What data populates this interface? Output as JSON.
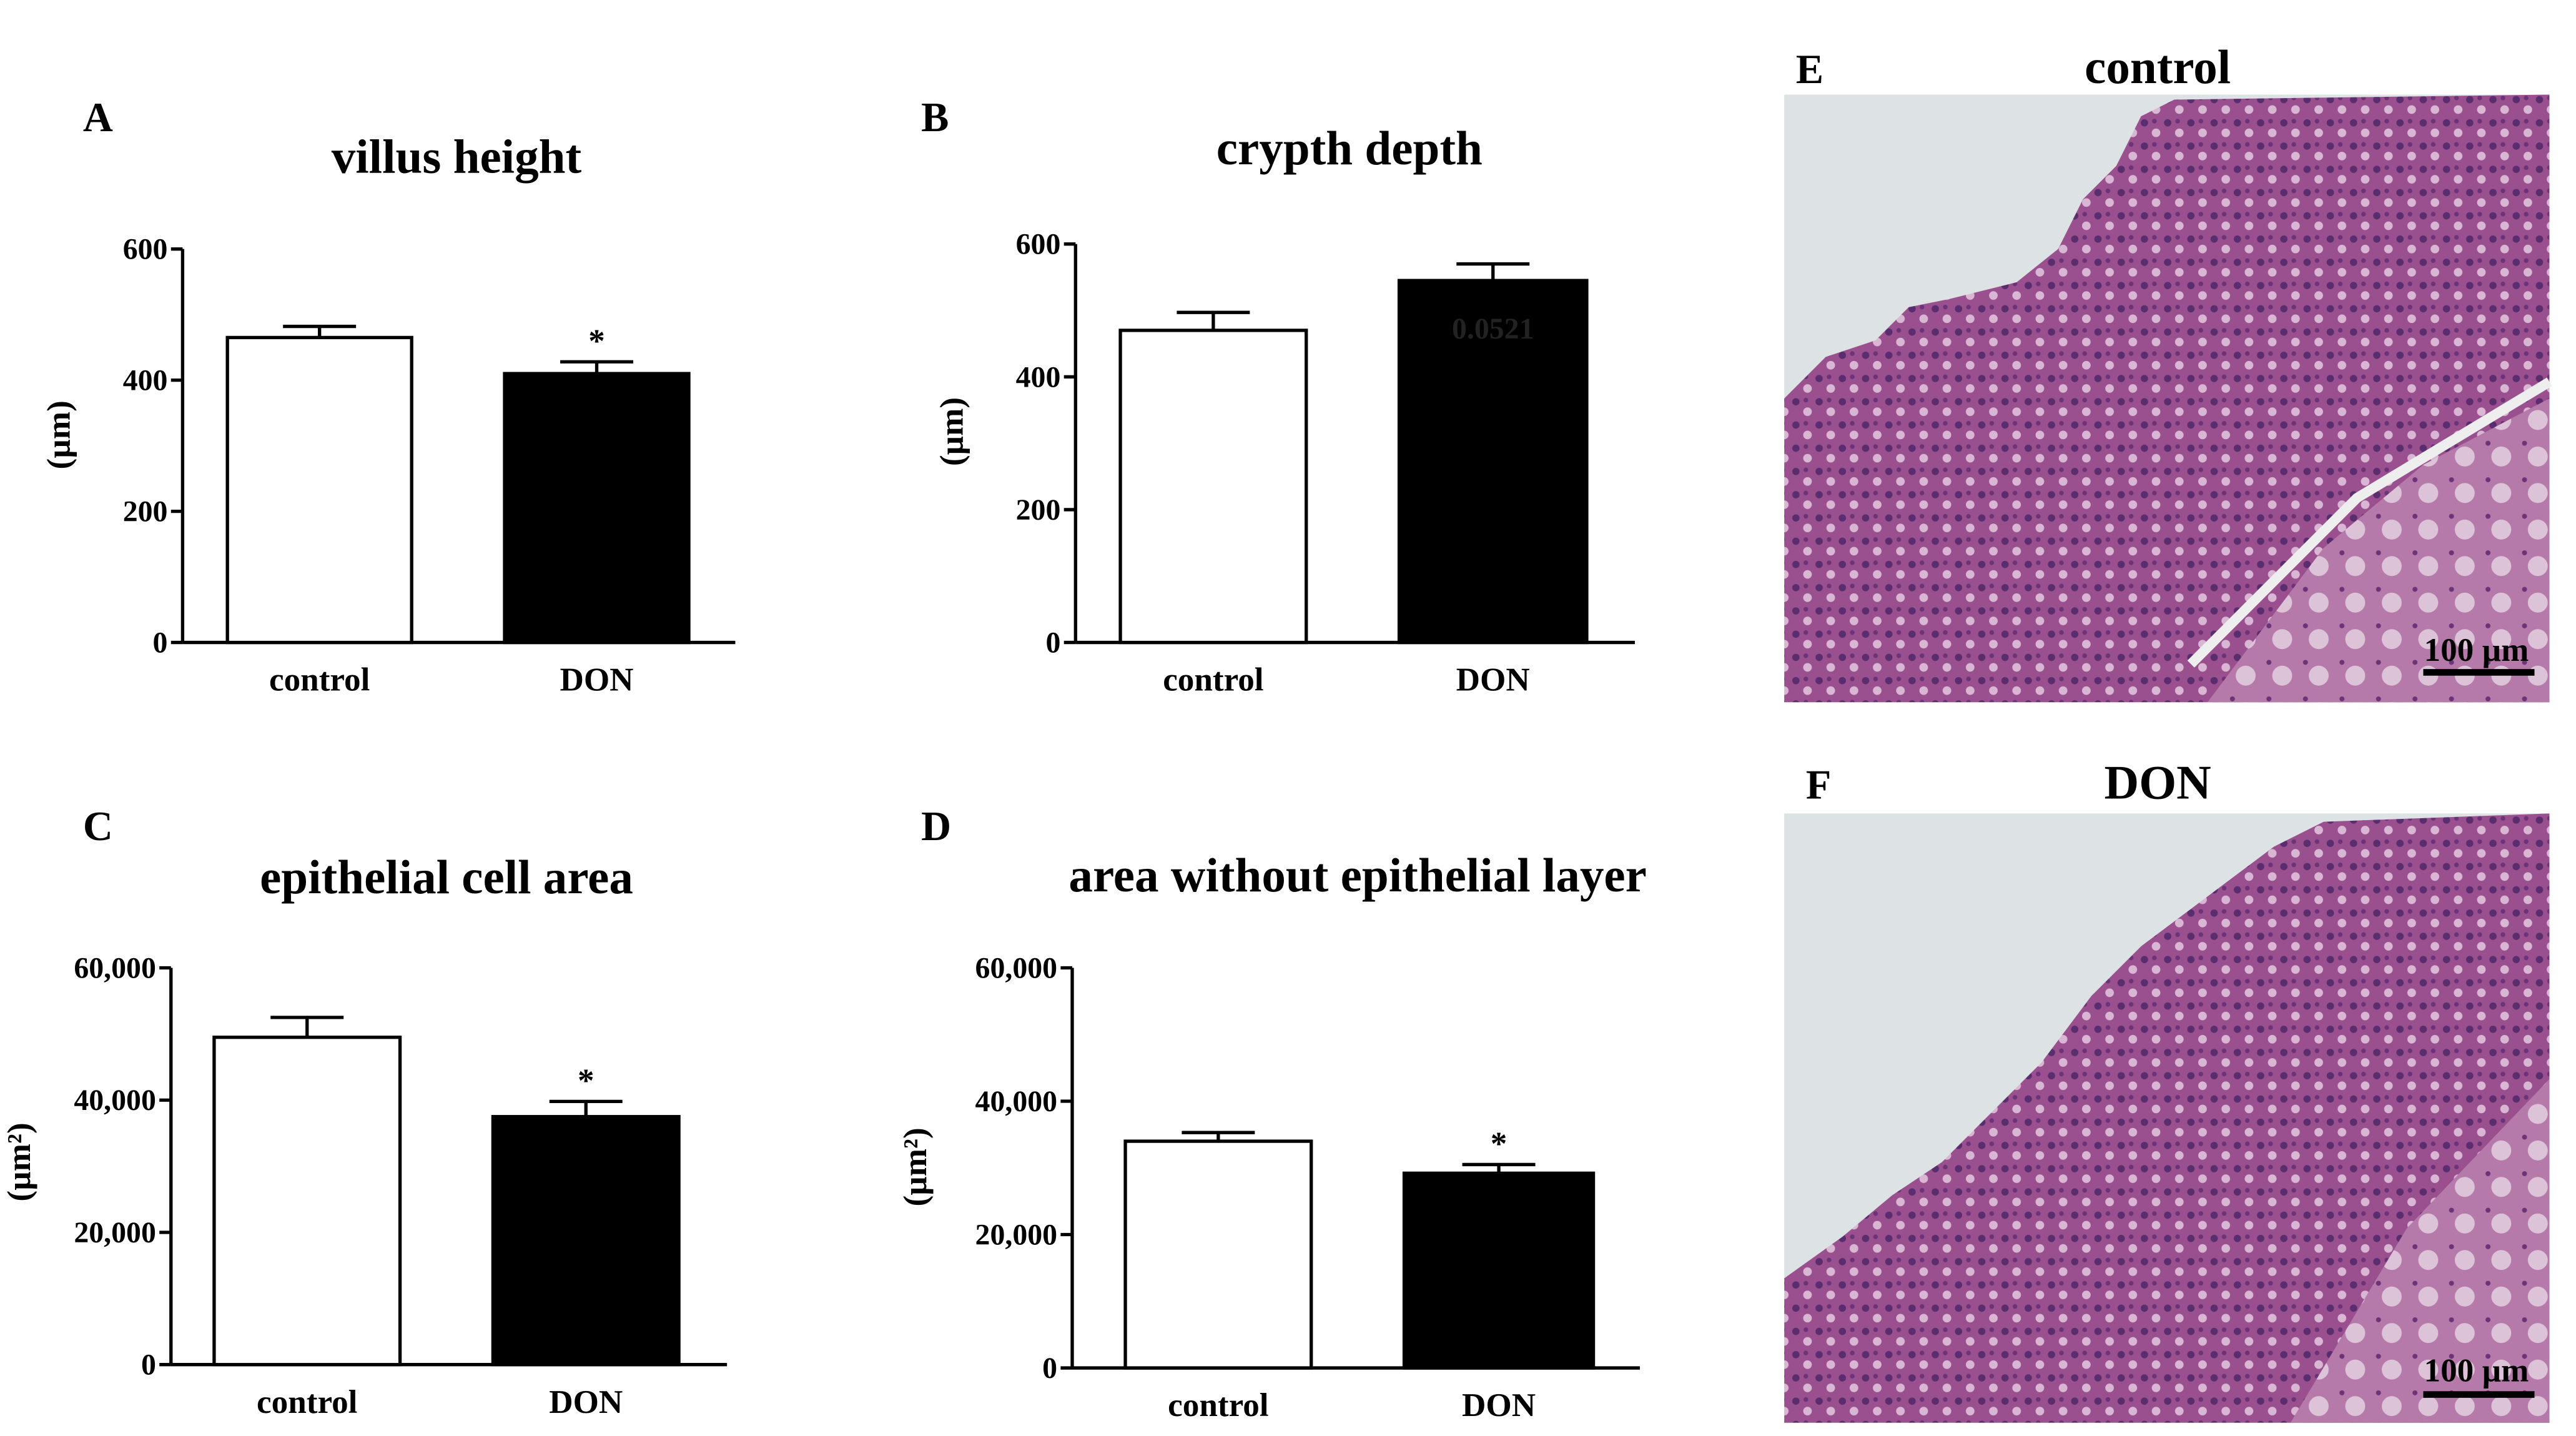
{
  "chart_data": [
    {
      "type": "bar",
      "panel": "A",
      "title": "villus height",
      "ylabel": "(µm)",
      "categories": [
        "control",
        "DON"
      ],
      "values": [
        465,
        410
      ],
      "errors": [
        17,
        18
      ],
      "colors": [
        "#ffffff",
        "#000000"
      ],
      "significance": [
        null,
        "*"
      ],
      "ylim": [
        0,
        600
      ],
      "yticks": [
        0,
        200,
        400,
        600
      ]
    },
    {
      "type": "bar",
      "panel": "B",
      "title": "crypth depth",
      "ylabel": "(µm)",
      "categories": [
        "control",
        "DON"
      ],
      "values": [
        470,
        545
      ],
      "errors": [
        27,
        25
      ],
      "colors": [
        "#ffffff",
        "#000000"
      ],
      "annotation": "0.0521",
      "ylim": [
        0,
        600
      ],
      "yticks": [
        0,
        200,
        400,
        600
      ]
    },
    {
      "type": "bar",
      "panel": "C",
      "title": "epithelial cell area",
      "ylabel": "(µm²)",
      "categories": [
        "control",
        "DON"
      ],
      "values": [
        49500,
        37500
      ],
      "errors": [
        3000,
        2300
      ],
      "colors": [
        "#ffffff",
        "#000000"
      ],
      "significance": [
        null,
        "*"
      ],
      "ylim": [
        0,
        60000
      ],
      "yticks": [
        0,
        {
          "value": 20000,
          "label": "20,000"
        },
        {
          "value": 40000,
          "label": "40,000"
        },
        {
          "value": 60000,
          "label": "60,000"
        }
      ]
    },
    {
      "type": "bar",
      "panel": "D",
      "title": "area without epithelial layer",
      "ylabel": "(µm²)",
      "categories": [
        "control",
        "DON"
      ],
      "values": [
        34000,
        29200
      ],
      "errors": [
        1300,
        1300
      ],
      "colors": [
        "#ffffff",
        "#000000"
      ],
      "significance": [
        null,
        "*"
      ],
      "ylim": [
        0,
        60000
      ],
      "yticks": [
        0,
        {
          "value": 20000,
          "label": "20,000"
        },
        {
          "value": 40000,
          "label": "40,000"
        },
        {
          "value": 60000,
          "label": "60,000"
        }
      ]
    }
  ],
  "images": [
    {
      "panel": "E",
      "title": "control",
      "scale_bar": "100 µm"
    },
    {
      "panel": "F",
      "title": "DON",
      "scale_bar": "100 µm"
    }
  ]
}
